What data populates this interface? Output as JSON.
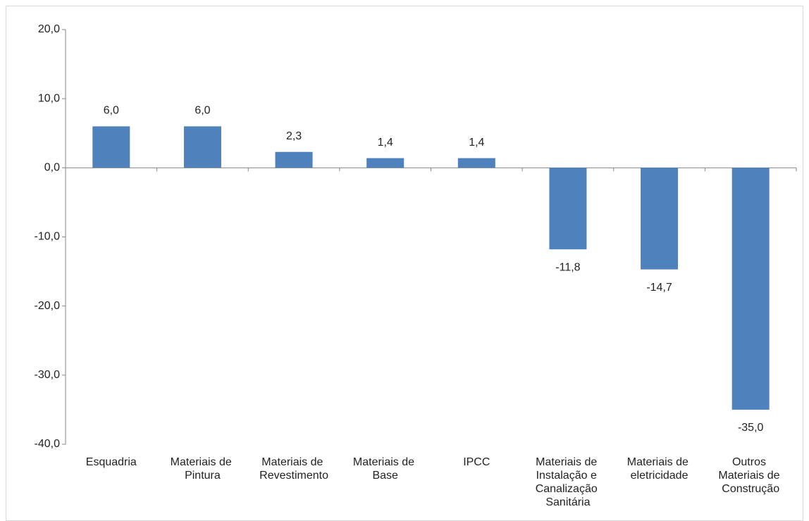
{
  "chart_data": {
    "type": "bar",
    "categories": [
      "Esquadria",
      "Materiais de Pintura",
      "Materiais de Revestimento",
      "Materiais de Base",
      "IPCC",
      "Materiais de Instalação e Canalização Sanitária",
      "Materiais de eletricidade",
      "Outros Materiais de Construção"
    ],
    "values": [
      6.0,
      6.0,
      2.3,
      1.4,
      1.4,
      -11.8,
      -14.7,
      -35.0
    ],
    "value_labels": [
      "6,0",
      "6,0",
      "2,3",
      "1,4",
      "1,4",
      "-11,8",
      "-14,7",
      "-35,0"
    ],
    "color": "#4f81bd",
    "ylim": [
      -40,
      20
    ],
    "yticks": [
      {
        "value": -40,
        "label": "-40,0"
      },
      {
        "value": -30,
        "label": "-30,0"
      },
      {
        "value": -20,
        "label": "-20,0"
      },
      {
        "value": -10,
        "label": "-10,0"
      },
      {
        "value": 0,
        "label": "0,0"
      },
      {
        "value": 10,
        "label": "10,0"
      },
      {
        "value": 20,
        "label": "20,0"
      }
    ],
    "grid": false
  }
}
